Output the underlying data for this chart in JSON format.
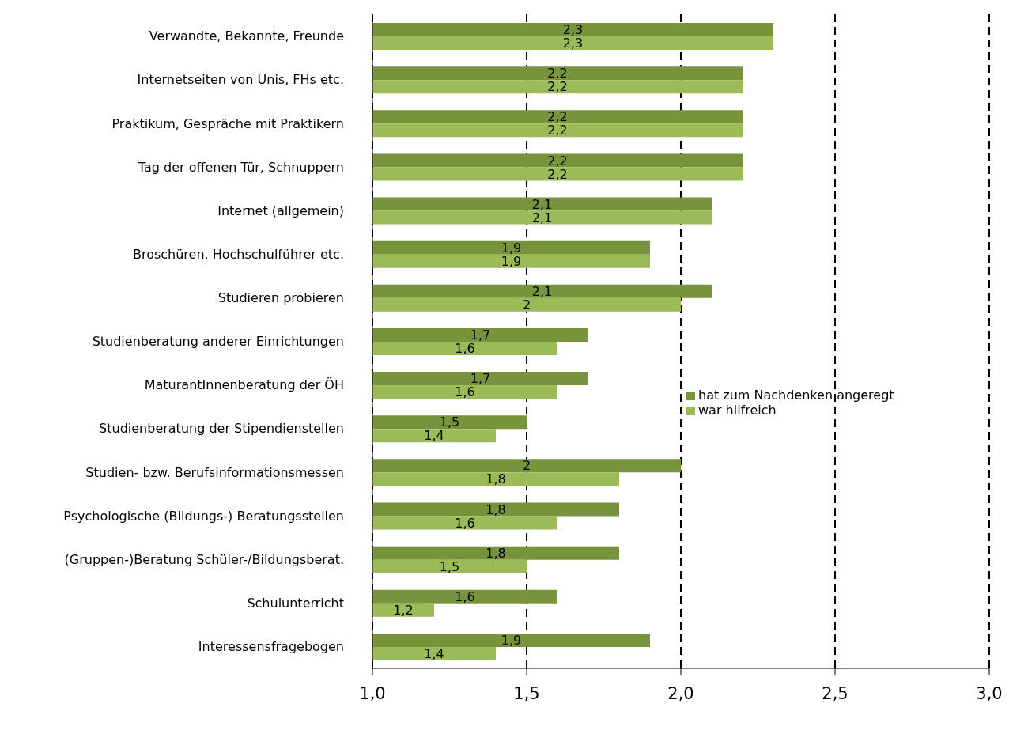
{
  "chart_data": {
    "type": "bar",
    "orientation": "horizontal",
    "categories": [
      "Verwandte, Bekannte, Freunde",
      "Internetseiten von Unis, FHs etc.",
      "Praktikum, Gespräche mit Praktikern",
      "Tag der offenen Tür, Schnuppern",
      "Internet (allgemein)",
      "Broschüren, Hochschulführer etc.",
      "Studieren probieren",
      "Studienberatung anderer Einrichtungen",
      "MaturantInnenberatung der ÖH",
      "Studienberatung der Stipendienstellen",
      "Studien- bzw. Berufsinformationsmessen",
      "Psychologische (Bildungs-) Beratungsstellen",
      "(Gruppen-)Beratung Schüler-/Bildungsberat.",
      "Schulunterricht",
      "Interessensfragebogen"
    ],
    "series": [
      {
        "name": "hat zum Nachdenken angeregt",
        "color": "#77933c",
        "values": [
          2.3,
          2.2,
          2.2,
          2.2,
          2.1,
          1.9,
          2.1,
          1.7,
          1.7,
          1.5,
          2,
          1.8,
          1.8,
          1.6,
          1.9
        ],
        "value_labels": [
          "2,3",
          "2,2",
          "2,2",
          "2,2",
          "2,1",
          "1,9",
          "2,1",
          "1,7",
          "1,7",
          "1,5",
          "2",
          "1,8",
          "1,8",
          "1,6",
          "1,9"
        ]
      },
      {
        "name": "war hilfreich",
        "color": "#9bbb59",
        "values": [
          2.3,
          2.2,
          2.2,
          2.2,
          2.1,
          1.9,
          2,
          1.6,
          1.6,
          1.4,
          1.8,
          1.6,
          1.5,
          1.2,
          1.4
        ],
        "value_labels": [
          "2,3",
          "2,2",
          "2,2",
          "2,2",
          "2,1",
          "1,9",
          "2",
          "1,6",
          "1,6",
          "1,4",
          "1,8",
          "1,6",
          "1,5",
          "1,2",
          "1,4"
        ]
      }
    ],
    "xlim": [
      1,
      3
    ],
    "xticks": [
      {
        "value": 1,
        "label": "1,0"
      },
      {
        "value": 1.5,
        "label": "1,5"
      },
      {
        "value": 2,
        "label": "2,0"
      },
      {
        "value": 2.5,
        "label": "2,5"
      },
      {
        "value": 3,
        "label": "3,0"
      }
    ],
    "grid": "x",
    "legend": "right",
    "line_style": "dashed"
  }
}
